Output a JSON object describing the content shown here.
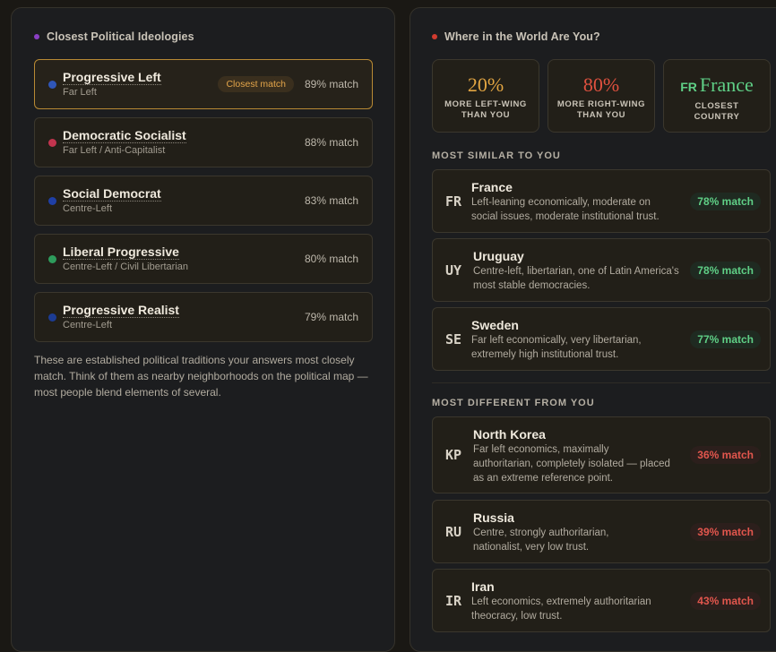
{
  "left_panel": {
    "title": "Closest Political Ideologies",
    "title_dot_color": "#8a3fc4",
    "ideologies": [
      {
        "name": "Progressive Left",
        "sub": "Far Left",
        "match": "89% match",
        "badge": "Closest match",
        "dot": "#2f56b8"
      },
      {
        "name": "Democratic Socialist",
        "sub": "Far Left / Anti-Capitalist",
        "match": "88% match",
        "dot": "#c2344e"
      },
      {
        "name": "Social Democrat",
        "sub": "Centre-Left",
        "match": "83% match",
        "dot": "#1f3fa6"
      },
      {
        "name": "Liberal Progressive",
        "sub": "Centre-Left / Civil Libertarian",
        "match": "80% match",
        "dot": "#2e9c5c"
      },
      {
        "name": "Progressive Realist",
        "sub": "Centre-Left",
        "match": "79% match",
        "dot": "#1c3c94"
      }
    ],
    "explanation": "These are established political traditions your answers most closely match. Think of them as nearby neighborhoods on the political map — most people blend elements of several."
  },
  "right_panel": {
    "title": "Where in the World Are You?",
    "title_dot_color": "#d13b2f",
    "stats": [
      {
        "value": "20%",
        "label": "MORE LEFT-WING THAN YOU",
        "color": "#e2a542"
      },
      {
        "value": "80%",
        "label": "MORE RIGHT-WING THAN YOU",
        "color": "#e0513f"
      },
      {
        "code": "FR",
        "value": "France",
        "label": "CLOSEST COUNTRY",
        "color": "#5fcf86"
      }
    ],
    "similar_header": "MOST SIMILAR TO YOU",
    "similar": [
      {
        "code": "FR",
        "name": "France",
        "desc": "Left-leaning economically, moderate on social issues, moderate institutional trust.",
        "match": "78% match"
      },
      {
        "code": "UY",
        "name": "Uruguay",
        "desc": "Centre-left, libertarian, one of Latin America's most stable democracies.",
        "match": "78% match"
      },
      {
        "code": "SE",
        "name": "Sweden",
        "desc": "Far left economically, very libertarian, extremely high institutional trust.",
        "match": "77% match"
      }
    ],
    "different_header": "MOST DIFFERENT FROM YOU",
    "different": [
      {
        "code": "KP",
        "name": "North Korea",
        "desc": "Far left economics, maximally authoritarian, completely isolated — placed as an extreme reference point.",
        "match": "36% match"
      },
      {
        "code": "RU",
        "name": "Russia",
        "desc": "Centre, strongly authoritarian, nationalist, very low trust.",
        "match": "39% match"
      },
      {
        "code": "IR",
        "name": "Iran",
        "desc": "Left economics, extremely authoritarian theocracy, low trust.",
        "match": "43% match"
      }
    ]
  }
}
